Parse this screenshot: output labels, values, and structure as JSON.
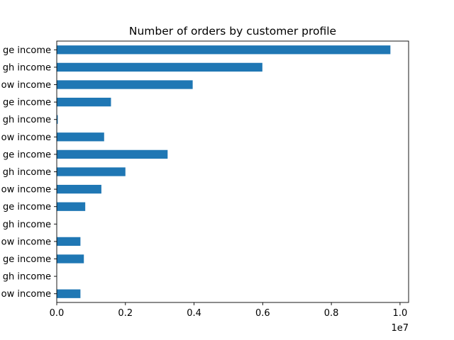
{
  "chart_data": {
    "type": "bar",
    "orientation": "horizontal",
    "title": "Number of orders by customer profile",
    "xlabel": "",
    "ylabel": "",
    "x_offset_label": "1e7",
    "x_scale": 10000000,
    "xlim": [
      0,
      10250000
    ],
    "x_ticks": [
      0.0,
      0.2,
      0.4,
      0.6,
      0.8,
      1.0
    ],
    "x_tick_labels": [
      "0.0",
      "0.2",
      "0.4",
      "0.6",
      "0.8",
      "1.0"
    ],
    "bar_color": "#1f77b4",
    "grid": false,
    "legend": "none",
    "categories": [
      "ge income",
      "gh income",
      "ow income",
      "ge income",
      "gh income",
      "ow income",
      "ge income",
      "gh income",
      "ow income",
      "ge income",
      "gh income",
      "ow income",
      "ge income",
      "gh income",
      "ow income"
    ],
    "values": [
      9720000,
      5990000,
      3960000,
      1580000,
      30000,
      1380000,
      3230000,
      2000000,
      1300000,
      830000,
      5000,
      690000,
      790000,
      5000,
      690000
    ]
  }
}
